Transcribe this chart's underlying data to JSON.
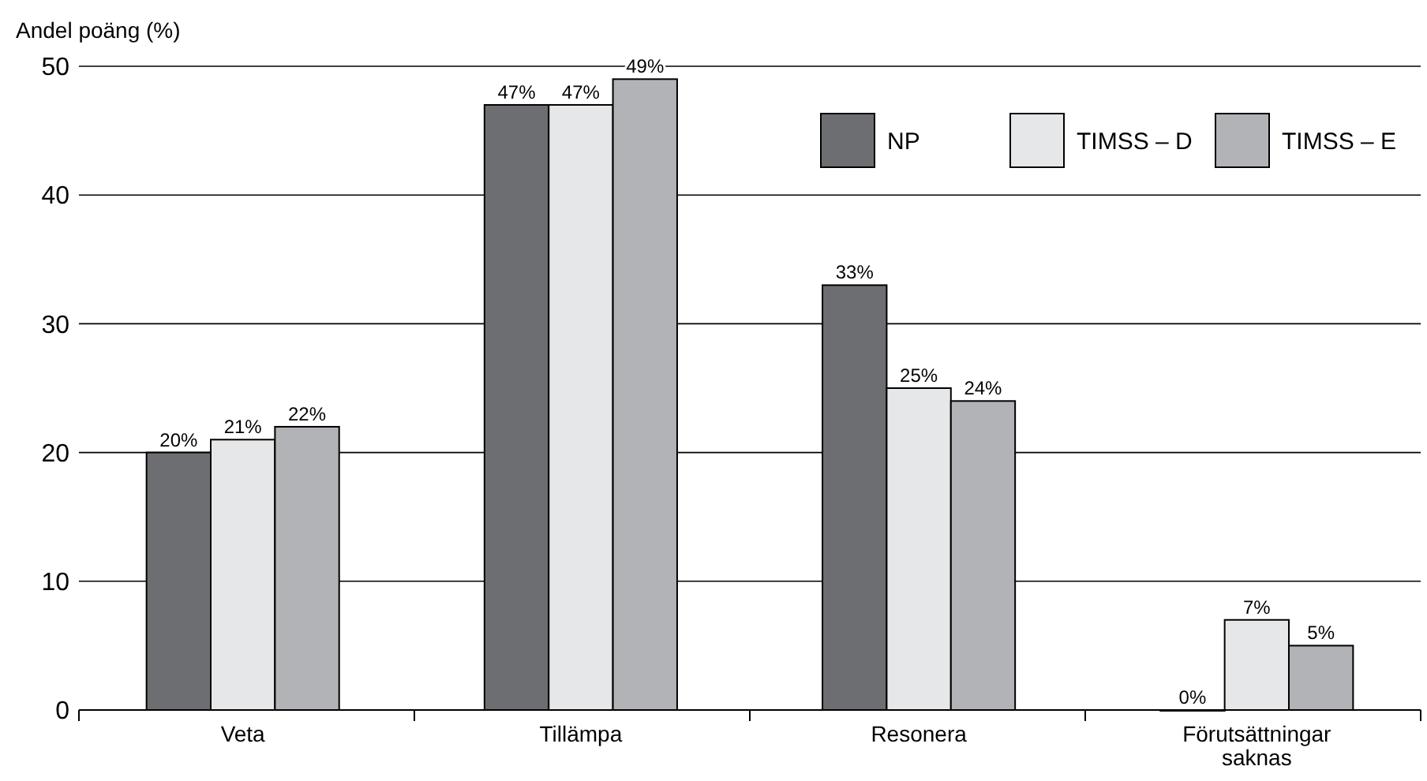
{
  "chart_data": {
    "type": "bar",
    "ylabel": "Andel poäng (%)",
    "categories": [
      "Veta",
      "Tillämpa",
      "Resonera",
      "Förutsättningar saknas"
    ],
    "series": [
      {
        "name": "NP",
        "color": "#6d6e71",
        "values": [
          20,
          47,
          33,
          0
        ],
        "value_labels": [
          "20%",
          "47%",
          "33%",
          "0%"
        ]
      },
      {
        "name": "TIMSS – D",
        "color": "#e6e7e8",
        "values": [
          21,
          47,
          25,
          7
        ],
        "value_labels": [
          "21%",
          "47%",
          "25%",
          "7%"
        ]
      },
      {
        "name": "TIMSS – E",
        "color": "#b1b3b6",
        "values": [
          22,
          49,
          24,
          5
        ],
        "value_labels": [
          "22%",
          "49%",
          "24%",
          "5%"
        ]
      }
    ],
    "ylim": [
      0,
      50
    ],
    "yticks": [
      0,
      10,
      20,
      30,
      40,
      50
    ],
    "grid": "y",
    "legend": "top right"
  }
}
